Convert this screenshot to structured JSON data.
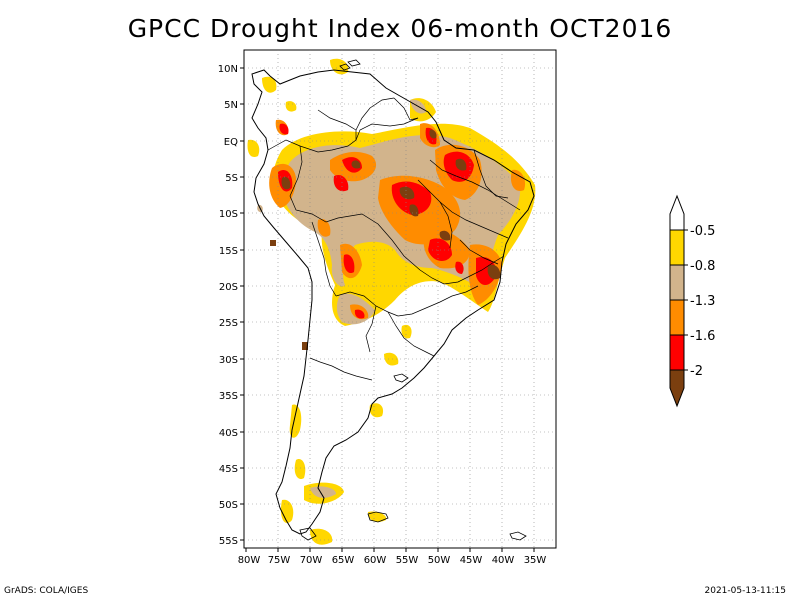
{
  "title": "GPCC Drought Index 06-month OCT2016",
  "map": {
    "lat_labels": [
      "10N",
      "5N",
      "EQ",
      "5S",
      "10S",
      "15S",
      "20S",
      "25S",
      "30S",
      "35S",
      "40S",
      "45S",
      "50S",
      "55S"
    ],
    "lon_labels": [
      "80W",
      "75W",
      "70W",
      "65W",
      "60W",
      "55W",
      "50W",
      "45W",
      "40W",
      "35W"
    ]
  },
  "colorbar": {
    "labels": [
      "-0.5",
      "-0.8",
      "-1.3",
      "-1.6",
      "-2"
    ],
    "colors": {
      "yellow": "#ffd700",
      "tan": "#d2b48c",
      "orange": "#ff8c00",
      "red": "#ff0000",
      "brown": "#7b3f0f"
    }
  },
  "footer": {
    "left": "GrADS: COLA/IGES",
    "right": "2021-05-13-11:15"
  }
}
